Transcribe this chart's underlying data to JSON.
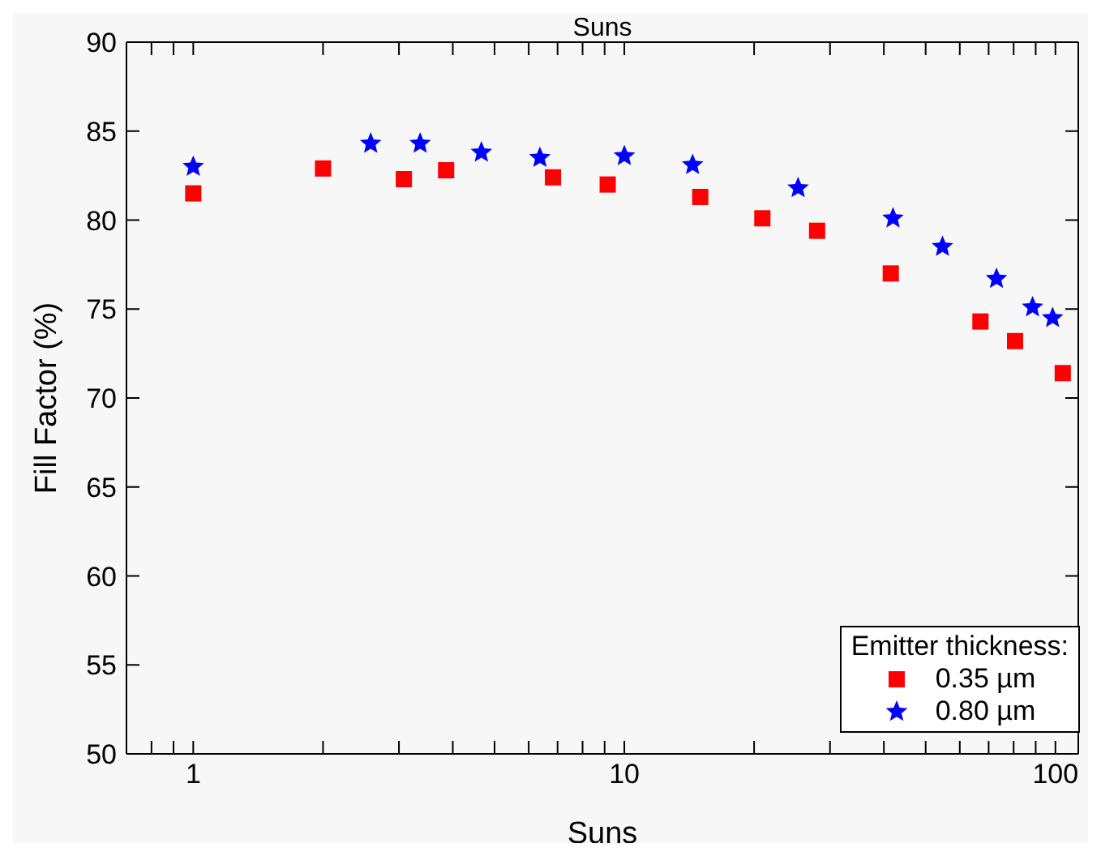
{
  "chart_data": {
    "type": "scatter",
    "title": "Suns",
    "xlabel": "Suns",
    "ylabel": "Fill Factor (%)",
    "legend_title": "Emitter thickness:",
    "log": "x",
    "grid": false,
    "legend": "bottom right",
    "xlim": [
      0.7,
      113
    ],
    "xticks": [
      {
        "value": 0.7,
        "label": null
      },
      {
        "value": 0.8,
        "label": null
      },
      {
        "value": 0.9,
        "label": null
      },
      1,
      {
        "value": 2,
        "label": null
      },
      {
        "value": 3,
        "label": null
      },
      {
        "value": 4,
        "label": null
      },
      {
        "value": 5,
        "label": null
      },
      {
        "value": 6,
        "label": null
      },
      {
        "value": 7,
        "label": null
      },
      {
        "value": 8,
        "label": null
      },
      {
        "value": 9,
        "label": null
      },
      10,
      {
        "value": 20,
        "label": null
      },
      {
        "value": 30,
        "label": null
      },
      {
        "value": 40,
        "label": null
      },
      {
        "value": 50,
        "label": null
      },
      {
        "value": 60,
        "label": null
      },
      {
        "value": 70,
        "label": null
      },
      {
        "value": 80,
        "label": null
      },
      {
        "value": 90,
        "label": null
      },
      100
    ],
    "ylim": [
      50,
      90
    ],
    "yticks": [
      50,
      55,
      60,
      65,
      70,
      75,
      80,
      85,
      90
    ],
    "series": [
      {
        "name": "0.35 µm",
        "color": "#ff0000",
        "marker": "square",
        "x": [
          1,
          2,
          3.08,
          3.86,
          6.83,
          9.15,
          15,
          20.9,
          28,
          41.5,
          67,
          80.6,
          104
        ],
        "values": [
          81.5,
          82.9,
          82.3,
          82.8,
          82.4,
          82.0,
          81.3,
          80.1,
          79.4,
          77.0,
          74.3,
          73.2,
          71.4
        ]
      },
      {
        "name": "0.80 µm",
        "color": "#0000ff",
        "marker": "star",
        "x": [
          1,
          2.58,
          3.36,
          4.66,
          6.37,
          10,
          14.4,
          25.3,
          42,
          54.7,
          73,
          88.5,
          98.5
        ],
        "values": [
          83.0,
          84.3,
          84.3,
          83.8,
          83.5,
          83.6,
          83.1,
          81.8,
          80.1,
          78.5,
          76.7,
          75.1,
          74.5
        ]
      }
    ]
  }
}
